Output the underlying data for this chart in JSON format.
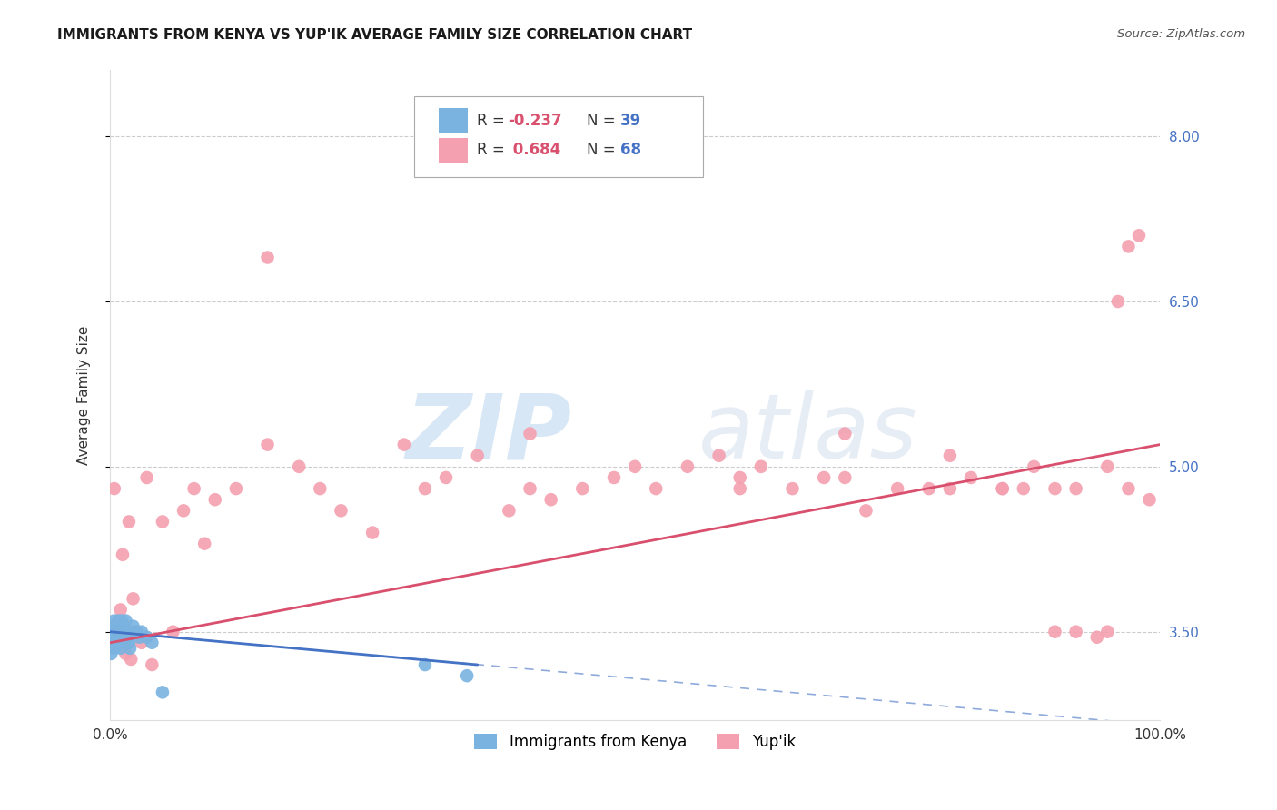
{
  "title": "IMMIGRANTS FROM KENYA VS YUP'IK AVERAGE FAMILY SIZE CORRELATION CHART",
  "source": "Source: ZipAtlas.com",
  "ylabel": "Average Family Size",
  "xlim": [
    0.0,
    1.0
  ],
  "ylim": [
    2.7,
    8.6
  ],
  "yticks": [
    3.5,
    5.0,
    6.5,
    8.0
  ],
  "xticklabels": [
    "0.0%",
    "100.0%"
  ],
  "legend_kenya_R": "-0.237",
  "legend_kenya_N": "39",
  "legend_yupik_R": "0.684",
  "legend_yupik_N": "68",
  "kenya_color": "#7ab3e0",
  "yupik_color": "#f4a0b0",
  "kenya_line_color": "#4472c4",
  "yupik_line_color": "#d94f6e",
  "background_color": "#ffffff",
  "grid_color": "#cccccc",
  "watermark_zip": "ZIP",
  "watermark_atlas": "atlas",
  "R_color": "#d94f6e",
  "N_color": "#4472c4",
  "ytick_color": "#4472c4",
  "kenya_scatter_x": [
    0.001,
    0.002,
    0.002,
    0.003,
    0.003,
    0.004,
    0.004,
    0.005,
    0.005,
    0.005,
    0.006,
    0.006,
    0.007,
    0.007,
    0.008,
    0.008,
    0.009,
    0.009,
    0.01,
    0.01,
    0.011,
    0.012,
    0.013,
    0.014,
    0.015,
    0.016,
    0.017,
    0.018,
    0.019,
    0.02,
    0.022,
    0.025,
    0.028,
    0.03,
    0.035,
    0.04,
    0.05,
    0.3,
    0.34
  ],
  "kenya_scatter_y": [
    3.3,
    3.5,
    3.45,
    3.55,
    3.4,
    3.6,
    3.35,
    3.5,
    3.45,
    3.55,
    3.5,
    3.4,
    3.55,
    3.45,
    3.5,
    3.6,
    3.45,
    3.4,
    3.5,
    3.35,
    3.6,
    3.55,
    3.5,
    3.45,
    3.6,
    3.5,
    3.45,
    3.4,
    3.35,
    3.5,
    3.55,
    3.5,
    3.45,
    3.5,
    3.45,
    3.4,
    2.95,
    3.2,
    3.1
  ],
  "yupik_scatter_x": [
    0.004,
    0.007,
    0.01,
    0.012,
    0.015,
    0.018,
    0.02,
    0.022,
    0.025,
    0.03,
    0.035,
    0.04,
    0.05,
    0.06,
    0.07,
    0.08,
    0.09,
    0.1,
    0.12,
    0.15,
    0.18,
    0.2,
    0.22,
    0.25,
    0.28,
    0.3,
    0.32,
    0.35,
    0.38,
    0.4,
    0.42,
    0.45,
    0.48,
    0.5,
    0.52,
    0.55,
    0.58,
    0.6,
    0.62,
    0.65,
    0.68,
    0.7,
    0.72,
    0.75,
    0.78,
    0.8,
    0.82,
    0.85,
    0.87,
    0.88,
    0.9,
    0.92,
    0.94,
    0.95,
    0.96,
    0.97,
    0.98,
    0.99,
    0.15,
    0.4,
    0.6,
    0.7,
    0.8,
    0.85,
    0.9,
    0.92,
    0.95,
    0.97
  ],
  "yupik_scatter_y": [
    4.8,
    3.5,
    3.7,
    4.2,
    3.3,
    4.5,
    3.25,
    3.8,
    3.5,
    3.4,
    4.9,
    3.2,
    4.5,
    3.5,
    4.6,
    4.8,
    4.3,
    4.7,
    4.8,
    5.2,
    5.0,
    4.8,
    4.6,
    4.4,
    5.2,
    4.8,
    4.9,
    5.1,
    4.6,
    4.8,
    4.7,
    4.8,
    4.9,
    5.0,
    4.8,
    5.0,
    5.1,
    4.9,
    5.0,
    4.8,
    4.9,
    4.9,
    4.6,
    4.8,
    4.8,
    5.1,
    4.9,
    4.8,
    4.8,
    5.0,
    3.5,
    3.5,
    3.45,
    3.5,
    6.5,
    7.0,
    7.1,
    4.7,
    6.9,
    5.3,
    4.8,
    5.3,
    4.8,
    4.8,
    4.8,
    4.8,
    5.0,
    4.8
  ]
}
